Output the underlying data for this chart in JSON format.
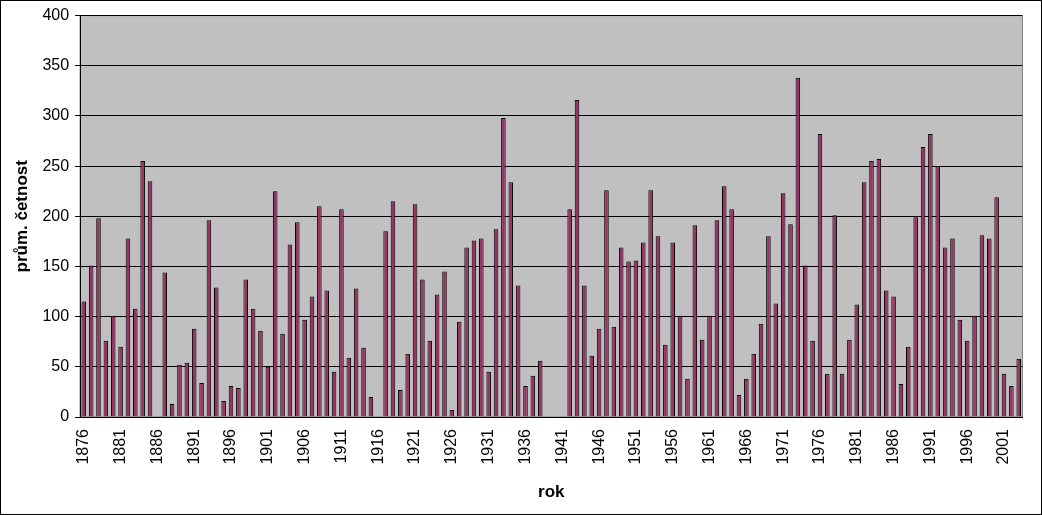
{
  "chart_data": {
    "type": "bar",
    "xlabel": "rok",
    "ylabel": "prům. četnost",
    "categories": [
      "1876",
      null,
      null,
      null,
      null,
      "1881",
      null,
      null,
      null,
      null,
      "1886",
      null,
      null,
      null,
      null,
      "1891",
      null,
      null,
      null,
      null,
      "1896",
      null,
      null,
      null,
      null,
      "1901",
      null,
      null,
      null,
      null,
      "1906",
      null,
      null,
      null,
      null,
      "1911",
      null,
      null,
      null,
      null,
      "1916",
      null,
      null,
      null,
      null,
      "1921",
      null,
      null,
      null,
      null,
      "1926",
      null,
      null,
      null,
      null,
      "1931",
      null,
      null,
      null,
      null,
      "1936",
      null,
      null,
      null,
      null,
      "1941",
      null,
      null,
      null,
      null,
      "1946",
      null,
      null,
      null,
      null,
      "1951",
      null,
      null,
      null,
      null,
      "1956",
      null,
      null,
      null,
      null,
      "1961",
      null,
      null,
      null,
      null,
      "1966",
      null,
      null,
      null,
      null,
      "1971",
      null,
      null,
      null,
      null,
      "1976",
      null,
      null,
      null,
      null,
      "1981",
      null,
      null,
      null,
      null,
      "1986",
      null,
      null,
      null,
      null,
      "1991",
      null,
      null,
      null,
      null,
      "1996",
      null,
      null,
      null,
      null,
      "2001",
      null,
      null
    ],
    "values": [
      115,
      151,
      198,
      76,
      101,
      70,
      178,
      108,
      255,
      235,
      null,
      144,
      13,
      52,
      54,
      88,
      34,
      196,
      129,
      16,
      31,
      29,
      137,
      108,
      86,
      50,
      225,
      83,
      172,
      194,
      97,
      120,
      210,
      126,
      45,
      207,
      59,
      128,
      69,
      20,
      null,
      185,
      215,
      27,
      63,
      212,
      137,
      76,
      122,
      145,
      7,
      95,
      169,
      176,
      178,
      45,
      187,
      298,
      234,
      131,
      31,
      41,
      56,
      null,
      null,
      null,
      207,
      316,
      131,
      61,
      88,
      226,
      90,
      169,
      155,
      156,
      174,
      226,
      180,
      72,
      174,
      101,
      38,
      191,
      77,
      101,
      196,
      230,
      207,
      22,
      38,
      63,
      93,
      180,
      113,
      223,
      192,
      338,
      151,
      76,
      282,
      43,
      201,
      43,
      77,
      112,
      234,
      255,
      257,
      126,
      120,
      33,
      70,
      199,
      269,
      282,
      250,
      169,
      178,
      97,
      76,
      101,
      181,
      178,
      219,
      43,
      31,
      58
    ],
    "color": "#993366",
    "ylim": [
      0,
      400
    ],
    "yticks": [
      0,
      50,
      100,
      150,
      200,
      250,
      300,
      350,
      400
    ],
    "grid": "y"
  }
}
